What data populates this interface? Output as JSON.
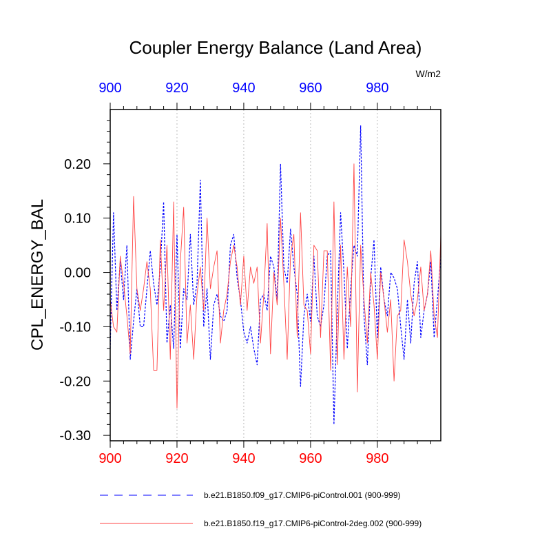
{
  "chart_data": {
    "type": "line",
    "title": "Coupler Energy Balance (Land Area)",
    "units": "W/m2",
    "ylabel": "CPL_ENERGY_BAL",
    "xlabel": "",
    "xlim": [
      900,
      999
    ],
    "ylim": [
      -0.31,
      0.3
    ],
    "x_ticks": [
      900,
      920,
      940,
      960,
      980
    ],
    "x_tick_labels": [
      "900",
      "920",
      "940",
      "960",
      "980"
    ],
    "top_x_ticks": [
      900,
      920,
      940,
      960,
      980
    ],
    "top_x_tick_labels": [
      "900",
      "920",
      "940",
      "960",
      "980"
    ],
    "y_ticks": [
      0.2,
      0.1,
      0.0,
      -0.1,
      -0.2,
      -0.3
    ],
    "y_tick_labels": [
      "0.20",
      "0.10",
      "0.00",
      "-0.10",
      "-0.20",
      "-0.30"
    ],
    "grid": "vertical dotted",
    "legend_placement": "bottom",
    "colors": {
      "series_1": "#0000ff",
      "series_2": "#ff4444",
      "bottom_axis_labels": "#ff0000",
      "top_axis_labels": "#0000ff",
      "grid": "#bbbbbb"
    },
    "x_start": 900,
    "series": [
      {
        "name": "b.e21.B1850.f09_g17.CMIP6-piControl.001 (900-999)",
        "style": "dashed",
        "values": [
          -0.14,
          0.11,
          -0.07,
          0.02,
          -0.05,
          0.05,
          -0.16,
          -0.09,
          -0.03,
          -0.1,
          -0.1,
          -0.03,
          0.04,
          -0.02,
          -0.06,
          0.01,
          0.13,
          -0.13,
          -0.06,
          -0.14,
          0.07,
          -0.14,
          -0.03,
          -0.05,
          0.07,
          -0.06,
          -0.02,
          0.17,
          -0.1,
          -0.03,
          -0.16,
          -0.06,
          -0.04,
          -0.08,
          -0.09,
          -0.07,
          0.05,
          0.07,
          -0.01,
          -0.05,
          -0.11,
          -0.13,
          -0.1,
          -0.14,
          -0.17,
          -0.05,
          -0.04,
          -0.07,
          0.03,
          0.01,
          -0.05,
          0.2,
          0.01,
          -0.02,
          0.08,
          0.01,
          -0.04,
          -0.21,
          -0.08,
          -0.04,
          -0.09,
          0.03,
          -0.08,
          -0.1,
          -0.06,
          0.03,
          0.04,
          -0.28,
          -0.07,
          0.11,
          0.0,
          -0.14,
          -0.03,
          0.05,
          0.03,
          0.27,
          -0.08,
          -0.17,
          -0.01,
          0.06,
          -0.12,
          0.01,
          -0.05,
          -0.08,
          0.0,
          -0.01,
          -0.03,
          -0.1,
          -0.16,
          -0.05,
          -0.13,
          -0.02,
          0.02,
          -0.12,
          -0.07,
          -0.04,
          0.02,
          -0.12,
          -0.05,
          0.03
        ]
      },
      {
        "name": "b.e21.B1850.f19_g17.CMIP6-piControl-2deg.002 (900-999)",
        "style": "solid",
        "values": [
          -0.05,
          -0.1,
          -0.11,
          0.03,
          -0.02,
          -0.08,
          -0.15,
          0.14,
          -0.03,
          -0.07,
          -0.03,
          0.02,
          -0.03,
          -0.18,
          -0.18,
          0.06,
          -0.07,
          0.05,
          -0.16,
          0.13,
          -0.25,
          0.02,
          0.12,
          -0.13,
          -0.06,
          -0.16,
          -0.04,
          0.01,
          -0.07,
          0.1,
          -0.03,
          0.01,
          0.04,
          -0.13,
          -0.07,
          -0.04,
          0.02,
          0.05,
          0.01,
          -0.06,
          0.03,
          -0.07,
          0.01,
          -0.02,
          0.01,
          -0.13,
          -0.04,
          0.09,
          -0.15,
          0.0,
          -0.06,
          0.1,
          -0.02,
          -0.16,
          0.03,
          0.07,
          -0.12,
          0.11,
          -0.06,
          -0.07,
          -0.15,
          0.05,
          0.04,
          -0.12,
          0.04,
          0.04,
          -0.18,
          0.13,
          -0.17,
          0.05,
          -0.16,
          0.01,
          -0.1,
          0.2,
          -0.22,
          0.05,
          -0.05,
          -0.13,
          0.0,
          -0.06,
          -0.16,
          0.0,
          -0.05,
          -0.11,
          -0.05,
          -0.2,
          -0.08,
          -0.07,
          0.06,
          0.02,
          -0.04,
          -0.08,
          -0.05,
          0.01,
          -0.07,
          -0.04,
          0.04,
          -0.08,
          -0.12,
          0.07
        ]
      }
    ]
  }
}
